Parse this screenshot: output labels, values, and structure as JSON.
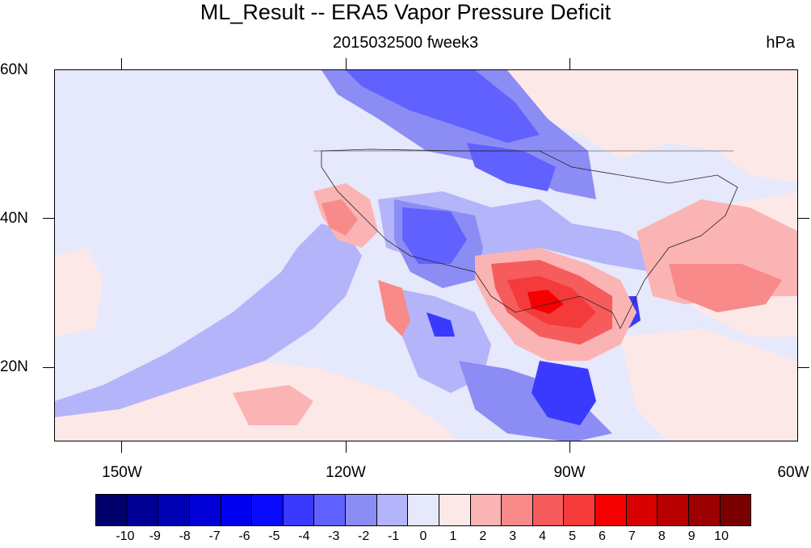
{
  "figure": {
    "title": "ML_Result -- ERA5 Vapor Pressure Deficit",
    "subtitle": "2015032500 fweek3",
    "units": "hPa"
  },
  "axes": {
    "lat_labels": [
      "60N",
      "40N",
      "20N"
    ],
    "lon_labels": [
      "150W",
      "120W",
      "90W",
      "60W"
    ]
  },
  "colorbar": {
    "labels": [
      "-10",
      "-9",
      "-8",
      "-7",
      "-6",
      "-5",
      "-4",
      "-3",
      "-2",
      "-1",
      "0",
      "1",
      "2",
      "3",
      "4",
      "5",
      "6",
      "7",
      "8",
      "9",
      "10"
    ],
    "colors": [
      "#00006b",
      "#000094",
      "#0000b5",
      "#0000d6",
      "#0000f0",
      "#0a0aff",
      "#3a3aff",
      "#6161ff",
      "#8c8cf5",
      "#b4b4fa",
      "#e6e8fb",
      "#fde8e8",
      "#fbb4b4",
      "#f88a8a",
      "#f65c5c",
      "#f43a3a",
      "#f50000",
      "#d90000",
      "#b80000",
      "#9c0000",
      "#7a0000"
    ]
  }
}
